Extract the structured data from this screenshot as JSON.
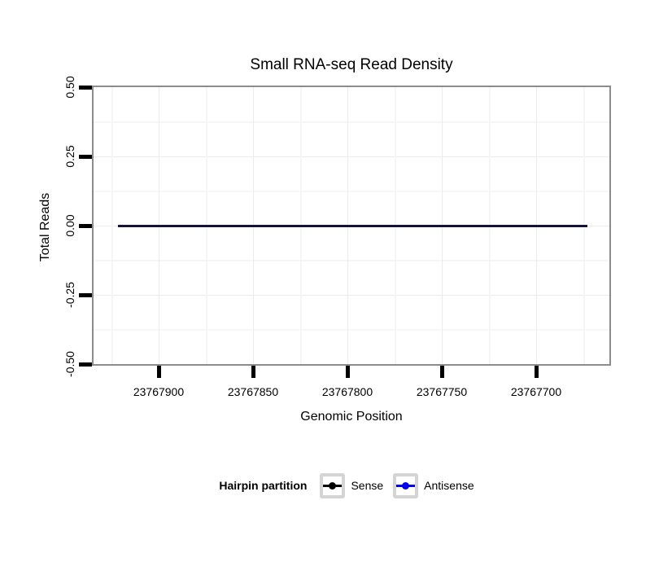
{
  "chart": {
    "title": "Small RNA-seq Read Density",
    "xlabel": "Genomic Position",
    "ylabel": "Total Reads"
  },
  "axes": {
    "x_tick_labels": [
      "23767900",
      "23767850",
      "23767800",
      "23767750",
      "23767700"
    ],
    "y_tick_labels": [
      "0.50",
      "0.25",
      "0.00",
      "-0.25",
      "-0.50"
    ],
    "x_reversed": true
  },
  "legend": {
    "title": "Hairpin partition",
    "entries": [
      {
        "label": "Sense",
        "color": "#000000"
      },
      {
        "label": "Antisense",
        "color": "#0000EE"
      }
    ]
  },
  "colors": {
    "panel_border": "#8C8C8C",
    "grid_major": "#ECECEC",
    "grid_minor": "#F6F6F6",
    "tick": "#000000",
    "overlapped_line": "#0B0B32",
    "legend_key_border": "#D4D4D4"
  },
  "chart_data": {
    "type": "line",
    "title": "Small RNA-seq Read Density",
    "xlabel": "Genomic Position",
    "ylabel": "Total Reads",
    "x_axis": {
      "reversed": true,
      "tick_values": [
        23767900,
        23767850,
        23767800,
        23767750,
        23767700
      ]
    },
    "ylim": [
      -0.5,
      0.5
    ],
    "y_tick_values": [
      0.5,
      0.25,
      0.0,
      -0.25,
      -0.5
    ],
    "series": [
      {
        "name": "Sense",
        "color": "#000000",
        "x_range": [
          23767921,
          23767673
        ],
        "y_constant": 0
      },
      {
        "name": "Antisense",
        "color": "#0000EE",
        "x_range": [
          23767921,
          23767673
        ],
        "y_constant": 0
      }
    ],
    "legend": {
      "title": "Hairpin partition",
      "position": "bottom"
    },
    "grid": "on",
    "notes": "Both series are constant at 0 reads across the plotted region; lines overlap at y=0."
  }
}
